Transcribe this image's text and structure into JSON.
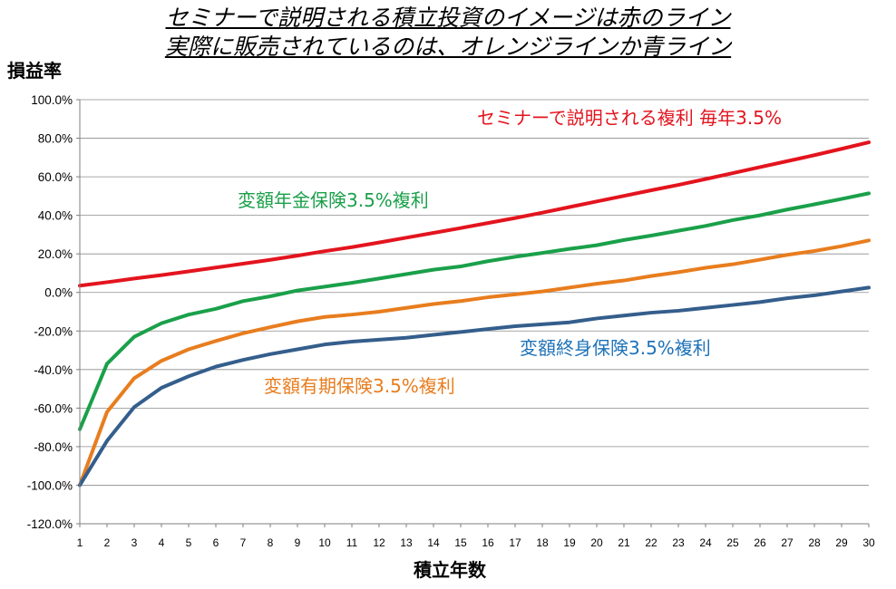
{
  "chart_data": {
    "type": "line",
    "title_lines": [
      "セミナーで説明される積立投資のイメージは赤のライン",
      "実際に販売されているのは、オレンジラインか青ライン"
    ],
    "ylabel": "損益率",
    "xlabel": "積立年数",
    "ylim": [
      -120,
      100
    ],
    "ytick_values": [
      100,
      80,
      60,
      40,
      20,
      0,
      -20,
      -40,
      -60,
      -80,
      -100,
      -120
    ],
    "ytick_labels": [
      "100.0%",
      "80.0%",
      "60.0%",
      "40.0%",
      "20.0%",
      "0.0%",
      "-20.0%",
      "-40.0%",
      "-60.0%",
      "-80.0%",
      "-100.0%",
      "-120.0%"
    ],
    "x": [
      1,
      2,
      3,
      4,
      5,
      6,
      7,
      8,
      9,
      10,
      11,
      12,
      13,
      14,
      15,
      16,
      17,
      18,
      19,
      20,
      21,
      22,
      23,
      24,
      25,
      26,
      27,
      28,
      29,
      30
    ],
    "grid": true,
    "series": [
      {
        "name": "セミナーで説明される複利 毎年3.5%",
        "color": "#e3141e",
        "values": [
          3.5,
          5.3,
          7.2,
          9.0,
          10.9,
          12.9,
          14.9,
          16.9,
          19.1,
          21.4,
          23.5,
          25.9,
          28.4,
          30.9,
          33.4,
          36.0,
          38.6,
          41.4,
          44.3,
          47.2,
          50.1,
          53.0,
          55.8,
          58.8,
          61.9,
          65.0,
          68.1,
          71.2,
          74.5,
          77.9
        ]
      },
      {
        "name": "変額年金保険3.5%複利",
        "color": "#1aa04a",
        "values": [
          -71,
          -37,
          -23,
          -16,
          -11.5,
          -8.5,
          -4.5,
          -2,
          1,
          3,
          5,
          7.2,
          9.5,
          11.8,
          13.5,
          16.2,
          18.5,
          20.5,
          22.6,
          24.5,
          27.2,
          29.5,
          32,
          34.5,
          37.5,
          40,
          43,
          45.7,
          48.5,
          51.4
        ]
      },
      {
        "name": "変額有期保険3.5%複利",
        "color": "#e87d1e",
        "values": [
          -100,
          -62,
          -44.5,
          -35.5,
          -29.5,
          -25.2,
          -21.2,
          -18,
          -15,
          -12.7,
          -11.5,
          -10,
          -8,
          -6,
          -4.5,
          -2.5,
          -1,
          0.5,
          2.5,
          4.5,
          6.2,
          8.5,
          10.5,
          12.8,
          14.6,
          17,
          19.5,
          21.5,
          24,
          27
        ]
      },
      {
        "name": "変額終身保険3.5%複利",
        "color": "#345e8c",
        "values": [
          -100,
          -77,
          -59.5,
          -49.5,
          -43.5,
          -38.5,
          -35,
          -32,
          -29.5,
          -27,
          -25.5,
          -24.5,
          -23.5,
          -22,
          -20.5,
          -19,
          -17.5,
          -16.5,
          -15.5,
          -13.5,
          -12,
          -10.5,
          -9.5,
          -8,
          -6.5,
          -5,
          -3,
          -1.5,
          0.5,
          2.5
        ]
      }
    ],
    "annotations": [
      {
        "text": "セミナーで説明される複利 毎年3.5%",
        "color": "#e3141e"
      },
      {
        "text": "変額年金保険3.5%複利",
        "color": "#1aa04a"
      },
      {
        "text": "変額終身保険3.5%複利",
        "color": "#1e72b8"
      },
      {
        "text": "変額有期保険3.5%複利",
        "color": "#e87d1e"
      }
    ]
  }
}
